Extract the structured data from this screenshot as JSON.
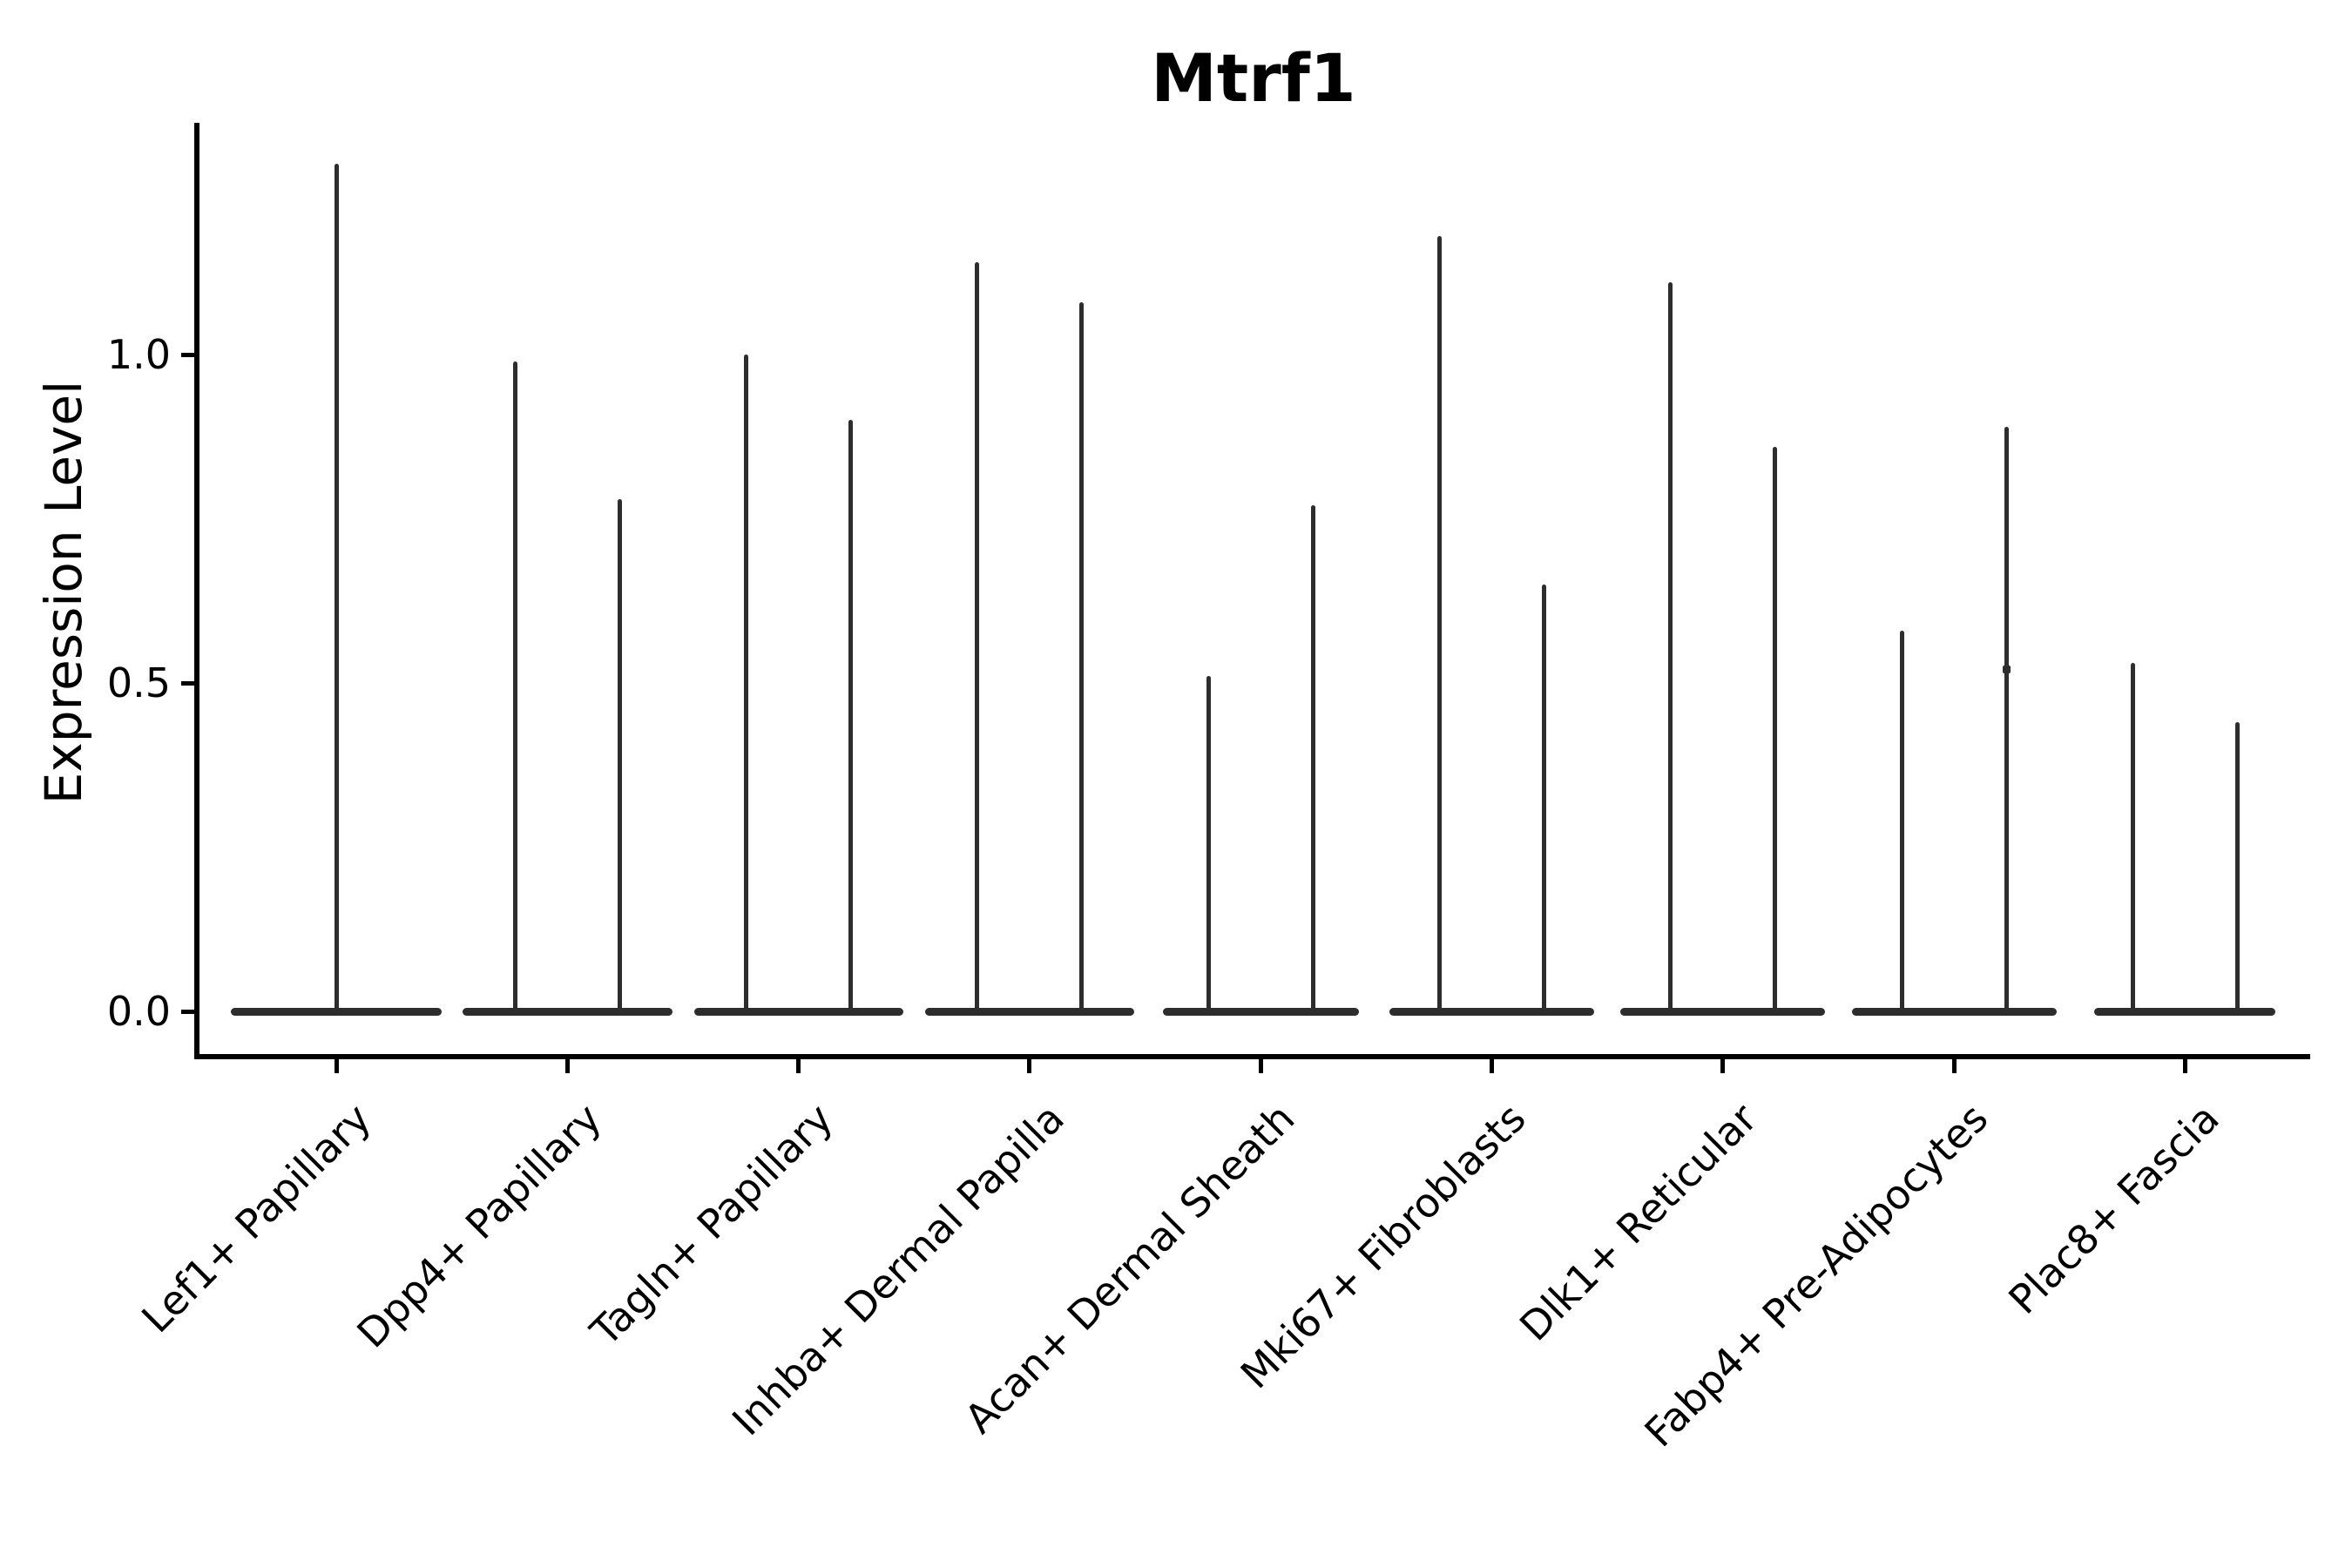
{
  "chart_data": {
    "type": "violin",
    "title": "Mtrf1",
    "ylabel": "Expression Level",
    "xlabel": "",
    "yticks": [
      0.0,
      0.5,
      1.0
    ],
    "ytick_labels": [
      "0.0",
      "0.5",
      "1.0"
    ],
    "ylim": [
      -0.07,
      1.35
    ],
    "grid": false,
    "legend": "none",
    "x_label_rotation_deg": 45,
    "categories": [
      "Lef1+ Papillary",
      "Dpp4+ Papillary",
      "Tagln+ Papillary",
      "Inhba+ Dermal Papilla",
      "Acan+ Dermal Sheath",
      "Mki67+ Fibroblasts",
      "Dlk1+ Reticular",
      "Fabp4+ Pre-Adipocytes",
      "Plac8+ Fascia"
    ],
    "series": [
      {
        "name": "Lef1+ Papillary",
        "violins": [
          {
            "side": "center",
            "peak_value": 1.29
          }
        ],
        "bulk_value": 0.0
      },
      {
        "name": "Dpp4+ Papillary",
        "violins": [
          {
            "side": "left",
            "peak_value": 0.99
          },
          {
            "side": "right",
            "peak_value": 0.78
          }
        ],
        "bulk_value": 0.0
      },
      {
        "name": "Tagln+ Papillary",
        "violins": [
          {
            "side": "left",
            "peak_value": 1.0
          },
          {
            "side": "right",
            "peak_value": 0.9
          }
        ],
        "bulk_value": 0.0
      },
      {
        "name": "Inhba+ Dermal Papilla",
        "violins": [
          {
            "side": "left",
            "peak_value": 1.14
          },
          {
            "side": "right",
            "peak_value": 1.08
          }
        ],
        "bulk_value": 0.0
      },
      {
        "name": "Acan+ Dermal Sheath",
        "violins": [
          {
            "side": "left",
            "peak_value": 0.51
          },
          {
            "side": "right",
            "peak_value": 0.77
          }
        ],
        "bulk_value": 0.0
      },
      {
        "name": "Mki67+ Fibroblasts",
        "violins": [
          {
            "side": "left",
            "peak_value": 1.18
          },
          {
            "side": "right",
            "peak_value": 0.65
          }
        ],
        "bulk_value": 0.0
      },
      {
        "name": "Dlk1+ Reticular",
        "violins": [
          {
            "side": "left",
            "peak_value": 1.11
          },
          {
            "side": "right",
            "peak_value": 0.86
          }
        ],
        "bulk_value": 0.0
      },
      {
        "name": "Fabp4+ Pre-Adipocytes",
        "violins": [
          {
            "side": "left",
            "peak_value": 0.58
          },
          {
            "side": "right",
            "peak_value": 0.89
          }
        ],
        "bulk_value": 0.0
      },
      {
        "name": "Plac8+ Fascia",
        "violins": [
          {
            "side": "left",
            "peak_value": 0.53
          },
          {
            "side": "right",
            "peak_value": 0.44
          }
        ],
        "bulk_value": 0.0
      }
    ],
    "points": [
      {
        "category_index": 7,
        "violin_side": "right",
        "value": 0.52
      }
    ],
    "colors": {
      "ink": "#000000",
      "violin": "#2d2d2d",
      "background": "#ffffff"
    }
  }
}
